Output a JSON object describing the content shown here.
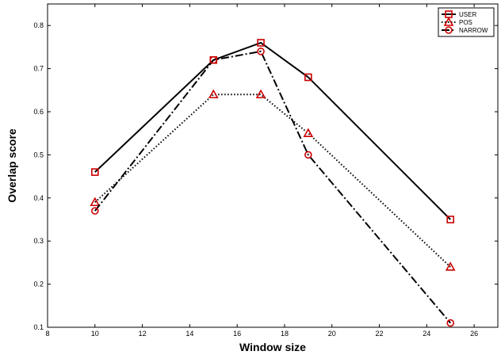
{
  "chart_data": {
    "type": "line",
    "title": "",
    "xlabel": "Window size",
    "ylabel": "Overlap score",
    "xlim": [
      8,
      27
    ],
    "ylim": [
      0.1,
      0.85
    ],
    "xticks": [
      8,
      10,
      12,
      14,
      16,
      18,
      20,
      22,
      24,
      26
    ],
    "yticks": [
      0.1,
      0.2,
      0.3,
      0.4,
      0.5,
      0.6,
      0.7,
      0.8
    ],
    "grid": false,
    "legend_position": "top-right",
    "series": [
      {
        "name": "USER",
        "x": [
          10,
          15,
          17,
          19,
          25
        ],
        "y": [
          0.46,
          0.72,
          0.76,
          0.68,
          0.35
        ],
        "marker": "square",
        "line": "solid"
      },
      {
        "name": "POS",
        "x": [
          10,
          15,
          17,
          19,
          25
        ],
        "y": [
          0.39,
          0.64,
          0.64,
          0.55,
          0.24
        ],
        "marker": "triangle",
        "line": "dotted"
      },
      {
        "name": "NARROW",
        "x": [
          10,
          15,
          17,
          19,
          25
        ],
        "y": [
          0.37,
          0.72,
          0.74,
          0.5,
          0.11
        ],
        "marker": "circle",
        "line": "dashdot"
      }
    ],
    "colors": {
      "line": "#000000",
      "marker": "#cc0000"
    }
  }
}
